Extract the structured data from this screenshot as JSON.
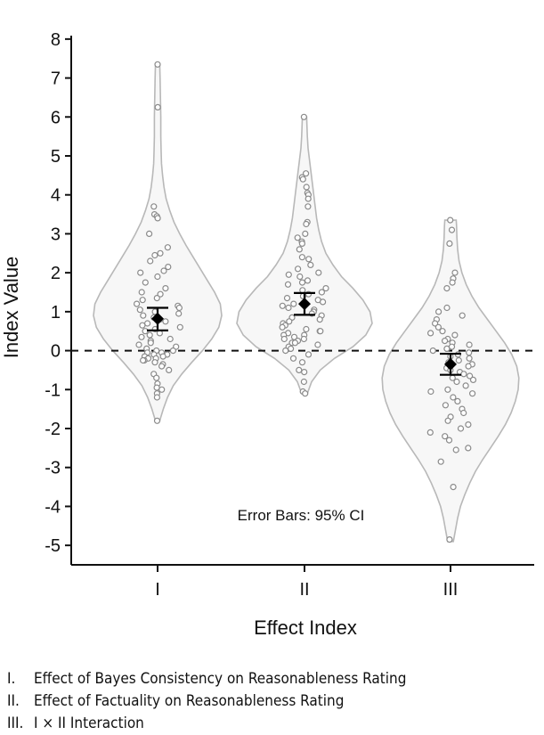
{
  "chart_data": {
    "type": "violin",
    "xlabel": "Effect Index",
    "ylabel": "Index Value",
    "ylim": [
      -5.5,
      8.5
    ],
    "yticks": [
      -5,
      -4,
      -3,
      -2,
      -1,
      0,
      1,
      2,
      3,
      4,
      5,
      6,
      7,
      8
    ],
    "categories": [
      "I",
      "II",
      "III"
    ],
    "reference_line": 0,
    "annotation": "Error Bars: 95% CI",
    "groups": [
      {
        "category": "I",
        "mean": 0.82,
        "ci": [
          0.52,
          1.1
        ],
        "range": [
          -1.8,
          7.35
        ],
        "density": [
          [
            -1.8,
            0.03
          ],
          [
            -1.5,
            0.08
          ],
          [
            -1.2,
            0.14
          ],
          [
            -0.9,
            0.22
          ],
          [
            -0.6,
            0.34
          ],
          [
            -0.3,
            0.48
          ],
          [
            0.0,
            0.63
          ],
          [
            0.3,
            0.76
          ],
          [
            0.6,
            0.86
          ],
          [
            0.9,
            0.9
          ],
          [
            1.2,
            0.88
          ],
          [
            1.5,
            0.8
          ],
          [
            1.8,
            0.7
          ],
          [
            2.1,
            0.6
          ],
          [
            2.4,
            0.5
          ],
          [
            2.7,
            0.4
          ],
          [
            3.0,
            0.31
          ],
          [
            3.3,
            0.23
          ],
          [
            3.6,
            0.17
          ],
          [
            3.9,
            0.12
          ],
          [
            4.2,
            0.09
          ],
          [
            4.5,
            0.07
          ],
          [
            4.8,
            0.055
          ],
          [
            5.1,
            0.05
          ],
          [
            5.5,
            0.045
          ],
          [
            6.0,
            0.045
          ],
          [
            6.5,
            0.04
          ],
          [
            7.0,
            0.035
          ],
          [
            7.35,
            0.03
          ]
        ],
        "points": [
          7.35,
          6.25,
          3.7,
          3.5,
          3.45,
          3.4,
          3.0,
          2.65,
          2.5,
          2.45,
          2.3,
          2.15,
          2.05,
          2.0,
          1.9,
          1.75,
          1.6,
          1.5,
          1.45,
          1.35,
          1.3,
          1.2,
          1.15,
          1.1,
          1.05,
          1.0,
          0.95,
          0.9,
          0.85,
          0.8,
          0.75,
          0.7,
          0.65,
          0.6,
          0.55,
          0.5,
          0.45,
          0.4,
          0.35,
          0.3,
          0.25,
          0.2,
          0.15,
          0.1,
          0.05,
          0.0,
          0.0,
          -0.05,
          -0.05,
          -0.1,
          -0.1,
          -0.15,
          -0.15,
          -0.2,
          -0.2,
          -0.25,
          -0.25,
          -0.3,
          -0.35,
          -0.4,
          -0.5,
          -0.6,
          -0.7,
          -0.85,
          -0.95,
          -1.0,
          -1.1,
          -1.2,
          -1.8
        ]
      },
      {
        "category": "II",
        "mean": 1.2,
        "ci": [
          0.92,
          1.48
        ],
        "range": [
          -1.1,
          6.0
        ],
        "density": [
          [
            -1.1,
            0.04
          ],
          [
            -0.8,
            0.1
          ],
          [
            -0.5,
            0.22
          ],
          [
            -0.2,
            0.42
          ],
          [
            0.1,
            0.68
          ],
          [
            0.4,
            0.86
          ],
          [
            0.7,
            0.95
          ],
          [
            1.0,
            0.92
          ],
          [
            1.3,
            0.82
          ],
          [
            1.6,
            0.68
          ],
          [
            1.9,
            0.52
          ],
          [
            2.2,
            0.4
          ],
          [
            2.5,
            0.3
          ],
          [
            2.8,
            0.24
          ],
          [
            3.1,
            0.2
          ],
          [
            3.4,
            0.17
          ],
          [
            3.7,
            0.15
          ],
          [
            4.0,
            0.13
          ],
          [
            4.3,
            0.11
          ],
          [
            4.6,
            0.09
          ],
          [
            4.9,
            0.07
          ],
          [
            5.2,
            0.05
          ],
          [
            5.5,
            0.04
          ],
          [
            6.0,
            0.03
          ]
        ],
        "points": [
          6.0,
          4.55,
          4.45,
          4.4,
          4.2,
          4.05,
          4.0,
          3.9,
          3.7,
          3.3,
          3.25,
          3.0,
          2.9,
          2.8,
          2.75,
          2.6,
          2.4,
          2.35,
          2.2,
          2.1,
          2.0,
          1.95,
          1.9,
          1.8,
          1.75,
          1.7,
          1.6,
          1.55,
          1.5,
          1.45,
          1.4,
          1.35,
          1.3,
          1.25,
          1.2,
          1.15,
          1.1,
          1.05,
          1.0,
          0.95,
          0.9,
          0.85,
          0.8,
          0.75,
          0.7,
          0.65,
          0.6,
          0.55,
          0.5,
          0.5,
          0.45,
          0.4,
          0.4,
          0.35,
          0.3,
          0.3,
          0.25,
          0.2,
          0.2,
          0.15,
          0.1,
          0.05,
          0.0,
          -0.1,
          -0.2,
          -0.3,
          -0.5,
          -0.55,
          -0.8,
          -1.05,
          -1.1
        ]
      },
      {
        "category": "III",
        "mean": -0.35,
        "ci": [
          -0.62,
          -0.08
        ],
        "range": [
          -4.9,
          3.35
        ],
        "density": [
          [
            -4.9,
            0.04
          ],
          [
            -4.6,
            0.07
          ],
          [
            -4.3,
            0.1
          ],
          [
            -4.0,
            0.14
          ],
          [
            -3.7,
            0.2
          ],
          [
            -3.4,
            0.27
          ],
          [
            -3.1,
            0.35
          ],
          [
            -2.8,
            0.45
          ],
          [
            -2.5,
            0.56
          ],
          [
            -2.2,
            0.67
          ],
          [
            -1.9,
            0.77
          ],
          [
            -1.6,
            0.85
          ],
          [
            -1.3,
            0.91
          ],
          [
            -1.0,
            0.95
          ],
          [
            -0.7,
            0.96
          ],
          [
            -0.4,
            0.93
          ],
          [
            -0.1,
            0.86
          ],
          [
            0.2,
            0.76
          ],
          [
            0.5,
            0.64
          ],
          [
            0.8,
            0.52
          ],
          [
            1.1,
            0.4
          ],
          [
            1.4,
            0.3
          ],
          [
            1.7,
            0.22
          ],
          [
            2.0,
            0.16
          ],
          [
            2.3,
            0.12
          ],
          [
            2.6,
            0.1
          ],
          [
            2.9,
            0.09
          ],
          [
            3.2,
            0.085
          ],
          [
            3.35,
            0.08
          ]
        ],
        "points": [
          3.35,
          3.1,
          2.75,
          2.0,
          1.85,
          1.75,
          1.6,
          1.1,
          1.0,
          0.9,
          0.8,
          0.7,
          0.6,
          0.5,
          0.45,
          0.4,
          0.3,
          0.25,
          0.2,
          0.15,
          0.1,
          0.05,
          0.0,
          -0.05,
          -0.1,
          -0.15,
          -0.2,
          -0.25,
          -0.3,
          -0.35,
          -0.4,
          -0.45,
          -0.5,
          -0.55,
          -0.6,
          -0.65,
          -0.7,
          -0.75,
          -0.8,
          -0.9,
          -1.0,
          -1.05,
          -1.1,
          -1.2,
          -1.3,
          -1.4,
          -1.5,
          -1.6,
          -1.7,
          -1.8,
          -1.9,
          -2.0,
          -2.1,
          -2.2,
          -2.3,
          -2.5,
          -2.55,
          -2.85,
          -3.5,
          -4.85
        ]
      }
    ]
  },
  "legend": [
    {
      "num": "I.",
      "text": "Effect of Bayes Consistency on Reasonableness Rating"
    },
    {
      "num": "II.",
      "text": "Effect of Factuality on Reasonableness Rating"
    },
    {
      "num": "III.",
      "text": "I × II Interaction"
    }
  ],
  "colors": {
    "violin_fill": "#f7f7f7",
    "violin_stroke": "#b8b8b8",
    "point_stroke": "#8a8a8a",
    "axis": "#111111"
  }
}
